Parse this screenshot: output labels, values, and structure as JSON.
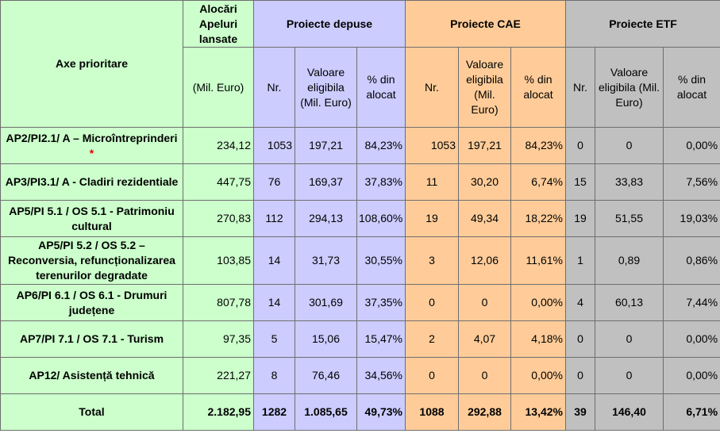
{
  "header": {
    "axe": "Axe prioritare",
    "alocari": "Alocări Apeluri lansate",
    "alocari_unit": "(Mil. Euro)",
    "group_depuse": "Proiecte depuse",
    "group_cae": "Proiecte CAE",
    "group_etf": "Proiecte ETF",
    "nr": "Nr.",
    "valoare": "Valoare eligibila (Mil. Euro)",
    "pct": "% din alocat"
  },
  "rows": [
    {
      "label": "AP2/PI2.1/ A – Microîntreprinderi",
      "star": "*",
      "alocari": "234,12",
      "d_nr": "1053",
      "d_val": "197,21",
      "d_pct": "84,23%",
      "c_nr": "1053",
      "c_val": "197,21",
      "c_pct": "84,23%",
      "e_nr": "0",
      "e_val": "0",
      "e_pct": "0,00%"
    },
    {
      "label": "AP3/PI3.1/ A - Cladiri rezidentiale",
      "star": "",
      "alocari": "447,75",
      "d_nr": "76",
      "d_val": "169,37",
      "d_pct": "37,83%",
      "c_nr": "11",
      "c_val": "30,20",
      "c_pct": "6,74%",
      "e_nr": "15",
      "e_val": "33,83",
      "e_pct": "7,56%"
    },
    {
      "label": "AP5/PI 5.1 / OS 5.1 - Patrimoniu cultural",
      "star": "",
      "alocari": "270,83",
      "d_nr": "112",
      "d_val": "294,13",
      "d_pct": "108,60%",
      "c_nr": "19",
      "c_val": "49,34",
      "c_pct": "18,22%",
      "e_nr": "19",
      "e_val": "51,55",
      "e_pct": "19,03%"
    },
    {
      "label": "AP5/PI 5.2 / OS 5.2 – Reconversia, refuncționalizarea terenurilor degradate",
      "star": "",
      "alocari": "103,85",
      "d_nr": "14",
      "d_val": "31,73",
      "d_pct": "30,55%",
      "c_nr": "3",
      "c_val": "12,06",
      "c_pct": "11,61%",
      "e_nr": "1",
      "e_val": "0,89",
      "e_pct": "0,86%"
    },
    {
      "label": "AP6/PI 6.1 / OS 6.1 - Drumuri județene",
      "star": "",
      "alocari": "807,78",
      "d_nr": "14",
      "d_val": "301,69",
      "d_pct": "37,35%",
      "c_nr": "0",
      "c_val": "0",
      "c_pct": "0,00%",
      "e_nr": "4",
      "e_val": "60,13",
      "e_pct": "7,44%"
    },
    {
      "label": "AP7/PI 7.1 / OS 7.1 - Turism",
      "star": "",
      "alocari": "97,35",
      "d_nr": "5",
      "d_val": "15,06",
      "d_pct": "15,47%",
      "c_nr": "2",
      "c_val": "4,07",
      "c_pct": "4,18%",
      "e_nr": "0",
      "e_val": "0",
      "e_pct": "0,00%"
    },
    {
      "label": "AP12/ Asistență tehnică",
      "star": "",
      "alocari": "221,27",
      "d_nr": "8",
      "d_val": "76,46",
      "d_pct": "34,56%",
      "c_nr": "0",
      "c_val": "0",
      "c_pct": "0,00%",
      "e_nr": "0",
      "e_val": "0",
      "e_pct": "0,00%"
    }
  ],
  "total": {
    "label": "Total",
    "alocari": "2.182,95",
    "d_nr": "1282",
    "d_val": "1.085,65",
    "d_pct": "49,73%",
    "c_nr": "1088",
    "c_val": "292,88",
    "c_pct": "13,42%",
    "e_nr": "39",
    "e_val": "146,40",
    "e_pct": "6,71%"
  },
  "colors": {
    "green": "#ccffcc",
    "purple": "#ccccff",
    "orange": "#ffcc99",
    "grey": "#c0c0c0",
    "star": "#e00000"
  }
}
